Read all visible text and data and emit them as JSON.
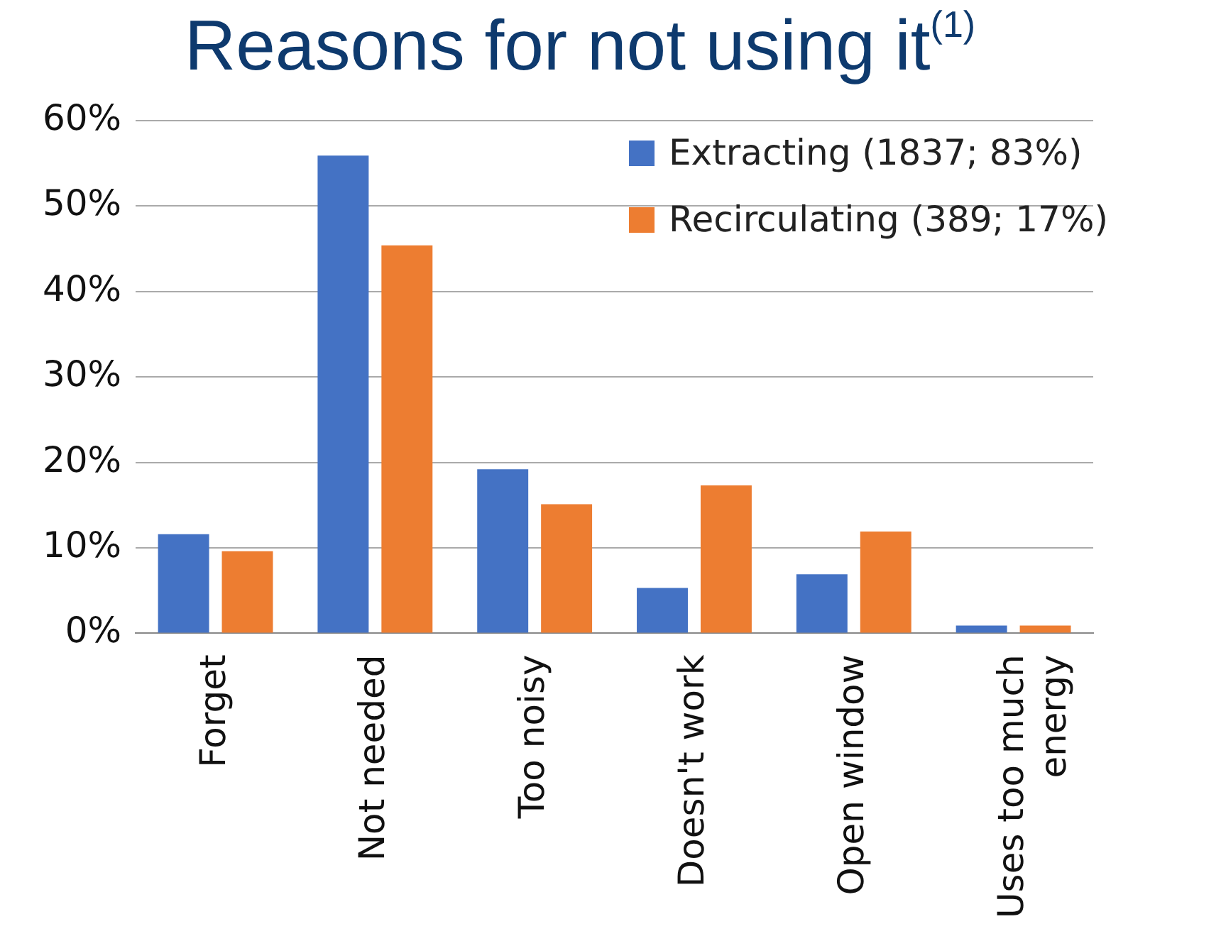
{
  "chart_data": {
    "type": "bar",
    "title": "Reasons for not using it$^{(1)}$",
    "categories": [
      "Forget",
      "Not needed",
      "Too noisy",
      "Doesn't work",
      "Open window",
      "Uses too much energy"
    ],
    "series": [
      {
        "name": "Extracting (1837; 83%)",
        "color": "#4472c4",
        "values": [
          11.6,
          55.9,
          19.2,
          5.3,
          6.9,
          0.9
        ]
      },
      {
        "name": "Recirculating (389; 17%)",
        "color": "#ed7d31",
        "values": [
          9.6,
          45.4,
          15.1,
          17.3,
          11.9,
          0.9
        ]
      }
    ],
    "ylim": [
      0,
      60
    ],
    "yticks": [
      {
        "value": 0,
        "label": "0%"
      },
      {
        "value": 10,
        "label": "10%"
      },
      {
        "value": 20,
        "label": "20%"
      },
      {
        "value": 30,
        "label": "30%"
      },
      {
        "value": 40,
        "label": "40%"
      },
      {
        "value": 50,
        "label": "50%"
      },
      {
        "value": 60,
        "label": "60%"
      }
    ],
    "grid": "y",
    "legend": "top right"
  }
}
